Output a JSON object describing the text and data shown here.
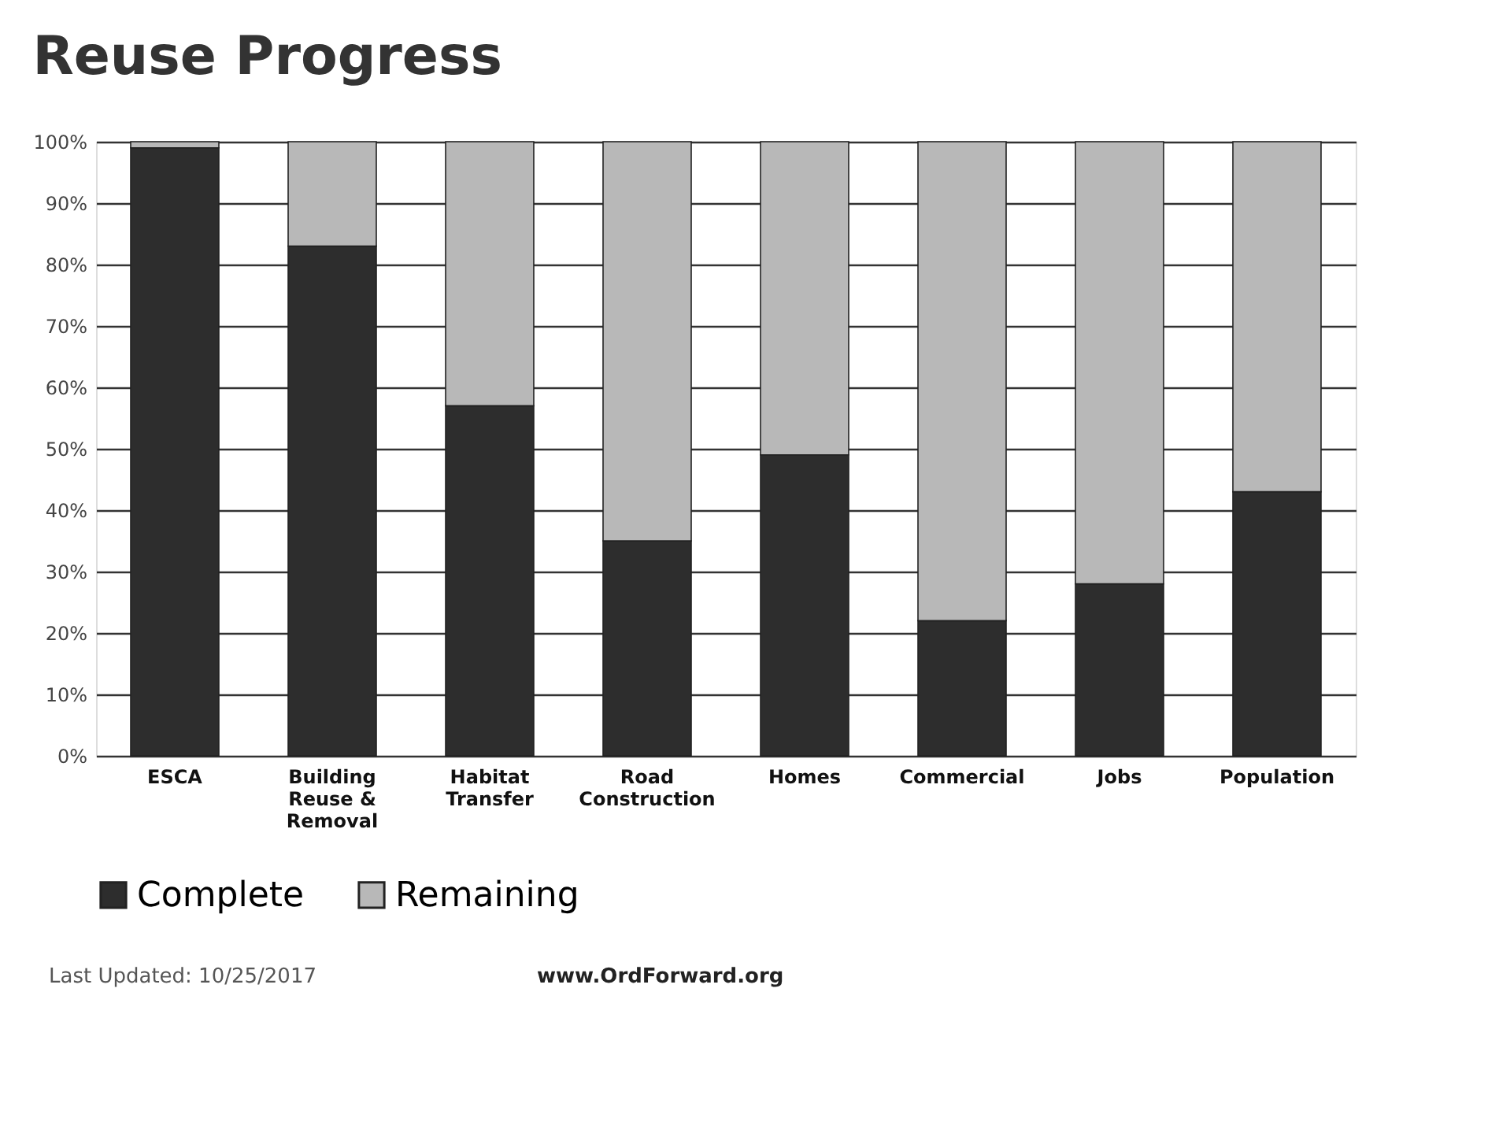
{
  "chart_data": {
    "type": "bar",
    "title": "Reuse Progress",
    "stacked": true,
    "categories": [
      "ESCA",
      "Building\nReuse &\nRemoval",
      "Habitat\nTransfer",
      "Road\nConstruction",
      "Homes",
      "Commercial",
      "Jobs",
      "Population"
    ],
    "series": [
      {
        "name": "Complete",
        "color": "#2d2d2d",
        "values": [
          99,
          83,
          57,
          35,
          49,
          22,
          28,
          43
        ]
      },
      {
        "name": "Remaining",
        "color": "#b8b8b8",
        "values": [
          1,
          17,
          43,
          65,
          51,
          78,
          72,
          57
        ]
      }
    ],
    "ylim": [
      0,
      100
    ],
    "yticks": [
      {
        "value": 0,
        "label": "0%"
      },
      {
        "value": 10,
        "label": "10%"
      },
      {
        "value": 20,
        "label": "20%"
      },
      {
        "value": 30,
        "label": "30%"
      },
      {
        "value": 40,
        "label": "40%"
      },
      {
        "value": 50,
        "label": "50%"
      },
      {
        "value": 60,
        "label": "60%"
      },
      {
        "value": 70,
        "label": "70%"
      },
      {
        "value": 80,
        "label": "80%"
      },
      {
        "value": 90,
        "label": "90%"
      },
      {
        "value": 100,
        "label": "100%"
      }
    ],
    "grid": "y",
    "legend": "bottom",
    "annotations": [
      "Last Updated: 10/25/2017",
      "www.OrdForward.org"
    ]
  }
}
